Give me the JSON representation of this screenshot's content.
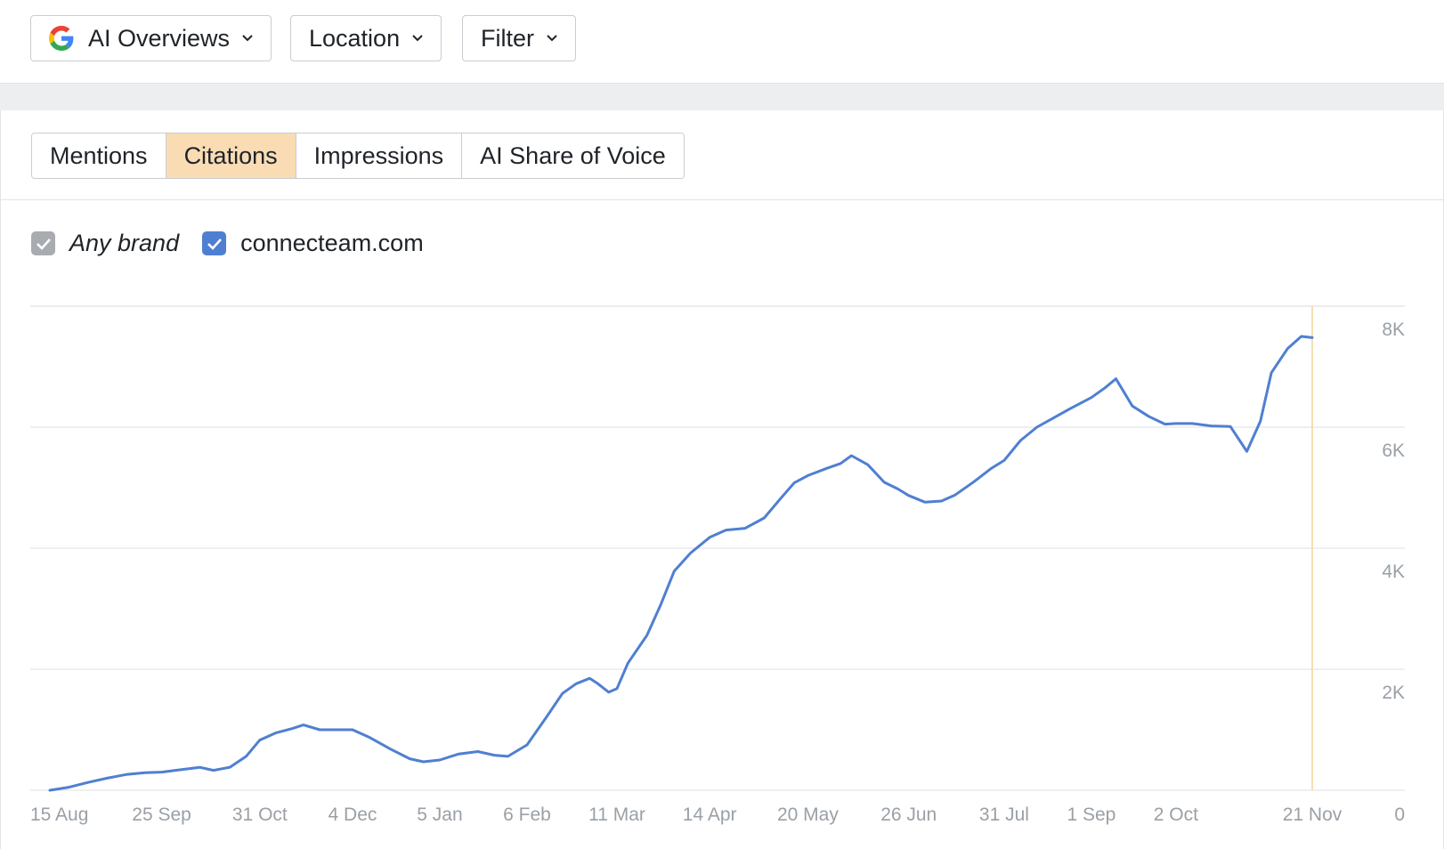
{
  "toolbar": {
    "dropdowns": [
      {
        "label": "AI Overviews",
        "icon": "google-g-icon"
      },
      {
        "label": "Location"
      },
      {
        "label": "Filter"
      }
    ]
  },
  "tabs": [
    {
      "label": "Mentions",
      "active": false
    },
    {
      "label": "Citations",
      "active": true
    },
    {
      "label": "Impressions",
      "active": false
    },
    {
      "label": "AI Share of Voice",
      "active": false
    }
  ],
  "legend": [
    {
      "label": "Any brand",
      "checked": true,
      "color": "#a8acb1"
    },
    {
      "label": "connecteam.com",
      "checked": true,
      "color": "#4f7fd1"
    }
  ],
  "colors": {
    "line": "#4f7fd1",
    "active_tab": "#f9dcb4",
    "marker": "#f3d9a0",
    "grid": "#e3e5e8"
  },
  "chart_data": {
    "type": "line",
    "title": "",
    "xlabel": "",
    "ylabel": "",
    "y_axis_side": "right",
    "ylim": [
      0,
      8000
    ],
    "yticks": [
      0,
      2000,
      4000,
      6000,
      8000
    ],
    "ytick_labels": [
      "0",
      "2K",
      "4K",
      "6K",
      "8K"
    ],
    "x_start": "15 Aug",
    "x_end": "21 Nov",
    "xticks": [
      {
        "label": "15 Aug",
        "at": "15 Aug"
      },
      {
        "label": "25 Sep",
        "at": "25 Sep"
      },
      {
        "label": "31 Oct",
        "at": "31 Oct"
      },
      {
        "label": "4 Dec",
        "at": "4 Dec"
      },
      {
        "label": "5 Jan",
        "at": "5 Jan"
      },
      {
        "label": "6 Feb",
        "at": "6 Feb"
      },
      {
        "label": "11 Mar",
        "at": "11 Mar"
      },
      {
        "label": "14 Apr",
        "at": "14 Apr"
      },
      {
        "label": "20 May",
        "at": "20 May"
      },
      {
        "label": "26 Jun",
        "at": "26 Jun"
      },
      {
        "label": "31 Jul",
        "at": "31 Jul"
      },
      {
        "label": "1 Sep",
        "at": "1 Sep"
      },
      {
        "label": "2 Oct",
        "at": "2 Oct"
      },
      {
        "label": "21 Nov",
        "at": "21 Nov"
      }
    ],
    "marker_at": "21 Nov",
    "grid": true,
    "series": [
      {
        "name": "connecteam.com",
        "color": "#4f7fd1",
        "points": [
          [
            "15 Aug",
            0
          ],
          [
            "22 Aug",
            50
          ],
          [
            "29 Aug",
            130
          ],
          [
            "5 Sep",
            200
          ],
          [
            "12 Sep",
            260
          ],
          [
            "19 Sep",
            290
          ],
          [
            "25 Sep",
            300
          ],
          [
            "2 Oct",
            340
          ],
          [
            "9 Oct",
            380
          ],
          [
            "14 Oct",
            330
          ],
          [
            "20 Oct",
            380
          ],
          [
            "26 Oct",
            560
          ],
          [
            "31 Oct",
            830
          ],
          [
            "6 Nov",
            950
          ],
          [
            "12 Nov",
            1020
          ],
          [
            "16 Nov",
            1080
          ],
          [
            "22 Nov",
            1000
          ],
          [
            "4 Dec",
            1000
          ],
          [
            "10 Dec",
            880
          ],
          [
            "18 Dec",
            680
          ],
          [
            "25 Dec",
            520
          ],
          [
            "30 Dec",
            470
          ],
          [
            "5 Jan",
            500
          ],
          [
            "12 Jan",
            600
          ],
          [
            "19 Jan",
            640
          ],
          [
            "25 Jan",
            580
          ],
          [
            "30 Jan",
            560
          ],
          [
            "6 Feb",
            750
          ],
          [
            "13 Feb",
            1200
          ],
          [
            "19 Feb",
            1600
          ],
          [
            "24 Feb",
            1760
          ],
          [
            "1 Mar",
            1850
          ],
          [
            "4 Mar",
            1760
          ],
          [
            "8 Mar",
            1620
          ],
          [
            "11 Mar",
            1680
          ],
          [
            "15 Mar",
            2100
          ],
          [
            "22 Mar",
            2560
          ],
          [
            "27 Mar",
            3060
          ],
          [
            "1 Apr",
            3620
          ],
          [
            "7 Apr",
            3920
          ],
          [
            "14 Apr",
            4180
          ],
          [
            "20 Apr",
            4300
          ],
          [
            "27 Apr",
            4330
          ],
          [
            "4 May",
            4500
          ],
          [
            "10 May",
            4820
          ],
          [
            "15 May",
            5080
          ],
          [
            "20 May",
            5200
          ],
          [
            "27 May",
            5320
          ],
          [
            "1 Jun",
            5400
          ],
          [
            "5 Jun",
            5530
          ],
          [
            "11 Jun",
            5380
          ],
          [
            "17 Jun",
            5090
          ],
          [
            "22 Jun",
            4980
          ],
          [
            "26 Jun",
            4870
          ],
          [
            "2 Jul",
            4760
          ],
          [
            "8 Jul",
            4780
          ],
          [
            "13 Jul",
            4880
          ],
          [
            "20 Jul",
            5100
          ],
          [
            "26 Jul",
            5310
          ],
          [
            "31 Jul",
            5450
          ],
          [
            "6 Aug",
            5780
          ],
          [
            "12 Aug",
            6000
          ],
          [
            "18 Aug",
            6150
          ],
          [
            "24 Aug",
            6300
          ],
          [
            "1 Sep",
            6490
          ],
          [
            "6 Sep",
            6650
          ],
          [
            "10 Sep",
            6800
          ],
          [
            "16 Sep",
            6350
          ],
          [
            "22 Sep",
            6180
          ],
          [
            "28 Sep",
            6050
          ],
          [
            "2 Oct",
            6060
          ],
          [
            "8 Oct",
            6060
          ],
          [
            "15 Oct",
            6020
          ],
          [
            "22 Oct",
            6010
          ],
          [
            "28 Oct",
            5600
          ],
          [
            "2 Nov",
            6100
          ],
          [
            "6 Nov",
            6900
          ],
          [
            "12 Nov",
            7300
          ],
          [
            "17 Nov",
            7500
          ],
          [
            "21 Nov",
            7480
          ]
        ]
      }
    ]
  }
}
